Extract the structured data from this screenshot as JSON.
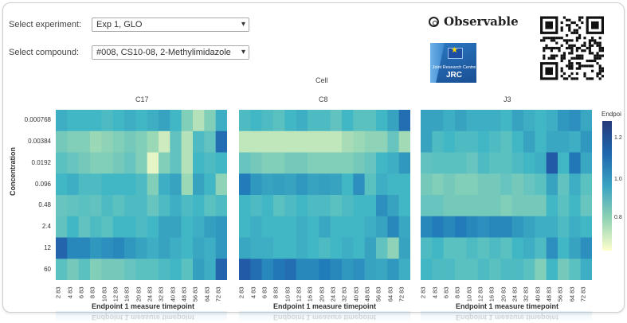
{
  "controls": {
    "experiment_label": "Select experiment:",
    "experiment_value": "Exp 1, GLO",
    "compound_label": "Select compound:",
    "compound_value": "#008, CS10-08, 2-Methylimidazole"
  },
  "branding": {
    "observable_text": "Observable",
    "jrc_line1": "Joint Research Centre",
    "jrc_line2": "JRC"
  },
  "chart_data": {
    "type": "heatmap",
    "title": "Cell",
    "xlabel": "Endpoint 1 measure timepoint",
    "ylabel": "Concentration",
    "legend_title": "Endpoi",
    "legend_ticks": [
      "1.2",
      "1.0",
      "0.8"
    ],
    "value_range": [
      0.7,
      1.3
    ],
    "timepoints": [
      "2 83",
      "4 83",
      "6 83",
      "8 83",
      "10 83",
      "12 83",
      "16 83",
      "20 83",
      "24 83",
      "32 83",
      "40 83",
      "48 83",
      "56 83",
      "64 83",
      "72 83"
    ],
    "concentrations": [
      "0.000768",
      "0.00384",
      "0.0192",
      "0.096",
      "0.48",
      "2.4",
      "12",
      "60"
    ],
    "panels": [
      {
        "name": "C17",
        "values": [
          [
            1.02,
            1.0,
            1.0,
            1.0,
            0.98,
            1.0,
            1.02,
            1.0,
            1.02,
            1.05,
            1.0,
            0.9,
            0.82,
            0.9,
            1.02
          ],
          [
            0.92,
            0.9,
            0.9,
            0.86,
            0.88,
            0.9,
            0.92,
            0.9,
            0.86,
            0.78,
            0.95,
            0.82,
            0.98,
            0.95,
            1.18
          ],
          [
            0.96,
            0.94,
            0.92,
            0.9,
            0.9,
            0.92,
            0.94,
            0.9,
            0.74,
            0.9,
            0.95,
            0.82,
            1.0,
            0.98,
            1.0
          ],
          [
            1.0,
            1.02,
            0.98,
            0.98,
            1.0,
            1.0,
            1.0,
            0.98,
            0.9,
            1.02,
            1.05,
            0.86,
            1.05,
            1.0,
            0.88
          ],
          [
            0.94,
            0.95,
            0.96,
            0.95,
            0.98,
            0.96,
            0.98,
            0.98,
            0.94,
            0.98,
            1.02,
            0.98,
            1.0,
            0.96,
            0.98
          ],
          [
            0.95,
            1.0,
            0.95,
            0.98,
            0.96,
            1.0,
            1.0,
            0.98,
            1.0,
            1.05,
            1.05,
            1.0,
            1.02,
            1.06,
            1.08
          ],
          [
            1.2,
            1.12,
            1.12,
            1.08,
            1.1,
            1.12,
            1.08,
            1.05,
            1.02,
            1.05,
            1.02,
            1.0,
            1.04,
            1.02,
            1.08
          ],
          [
            0.96,
            0.92,
            0.96,
            0.9,
            0.92,
            0.92,
            0.94,
            0.96,
            0.96,
            0.98,
            1.0,
            0.96,
            1.06,
            1.02,
            1.2
          ]
        ]
      },
      {
        "name": "C8",
        "values": [
          [
            0.98,
            1.0,
            0.98,
            0.96,
            1.0,
            1.02,
            0.98,
            0.98,
            0.95,
            1.0,
            0.96,
            0.96,
            1.0,
            1.05,
            1.18
          ],
          [
            0.8,
            0.8,
            0.8,
            0.8,
            0.8,
            0.8,
            0.8,
            0.8,
            0.8,
            0.84,
            0.86,
            0.88,
            0.88,
            0.94,
            0.85
          ],
          [
            0.94,
            0.92,
            0.9,
            0.9,
            0.92,
            0.92,
            0.9,
            0.9,
            0.9,
            0.9,
            0.92,
            0.94,
            1.0,
            1.02,
            1.08
          ],
          [
            1.15,
            1.08,
            1.05,
            1.06,
            1.05,
            1.08,
            1.05,
            1.06,
            1.05,
            1.0,
            1.1,
            0.96,
            1.02,
            1.0,
            1.0
          ],
          [
            1.0,
            0.98,
            1.0,
            0.96,
            0.98,
            1.0,
            0.98,
            0.98,
            0.96,
            0.98,
            1.0,
            1.0,
            1.1,
            1.05,
            1.0
          ],
          [
            1.0,
            1.02,
            1.0,
            1.0,
            1.0,
            1.02,
            1.0,
            1.04,
            1.0,
            1.0,
            1.0,
            1.02,
            1.05,
            1.12,
            1.04
          ],
          [
            1.04,
            1.02,
            1.02,
            1.0,
            1.0,
            1.02,
            1.0,
            0.98,
            1.0,
            1.02,
            1.0,
            1.05,
            0.95,
            0.88,
            1.05
          ],
          [
            1.22,
            1.18,
            1.12,
            1.16,
            1.18,
            1.12,
            1.12,
            1.15,
            1.12,
            1.08,
            1.1,
            1.05,
            1.04,
            1.08,
            1.02
          ]
        ]
      },
      {
        "name": "J3",
        "values": [
          [
            1.05,
            1.05,
            1.02,
            1.05,
            1.02,
            1.02,
            1.02,
            1.0,
            1.05,
            1.02,
            1.0,
            1.02,
            1.08,
            1.1,
            1.04
          ],
          [
            1.05,
            0.98,
            1.0,
            0.98,
            0.98,
            1.0,
            0.98,
            0.96,
            1.0,
            1.05,
            1.0,
            1.04,
            1.04,
            1.02,
            1.08
          ],
          [
            0.95,
            0.96,
            0.96,
            0.96,
            0.94,
            0.98,
            0.96,
            0.96,
            0.98,
            1.0,
            1.02,
            1.22,
            1.0,
            1.16,
            1.04
          ],
          [
            0.92,
            0.9,
            0.92,
            0.9,
            0.9,
            0.92,
            0.92,
            0.94,
            0.92,
            0.94,
            0.96,
            1.05,
            0.95,
            1.02,
            0.96
          ],
          [
            0.94,
            0.94,
            0.92,
            0.92,
            0.92,
            0.92,
            0.92,
            0.9,
            0.92,
            0.92,
            0.92,
            1.0,
            0.96,
            1.0,
            0.94
          ],
          [
            1.12,
            1.15,
            1.12,
            1.15,
            1.12,
            1.1,
            1.12,
            1.12,
            1.08,
            1.05,
            1.02,
            1.02,
            0.98,
            1.02,
            1.0
          ],
          [
            0.98,
            1.0,
            0.96,
            0.96,
            0.98,
            0.96,
            0.98,
            0.96,
            1.0,
            1.02,
            0.98,
            1.1,
            1.0,
            1.05,
            1.1
          ],
          [
            1.0,
            0.98,
            0.98,
            0.96,
            0.96,
            0.98,
            0.96,
            0.98,
            0.98,
            0.96,
            0.9,
            1.0,
            0.92,
            0.96,
            1.02
          ]
        ]
      }
    ]
  }
}
